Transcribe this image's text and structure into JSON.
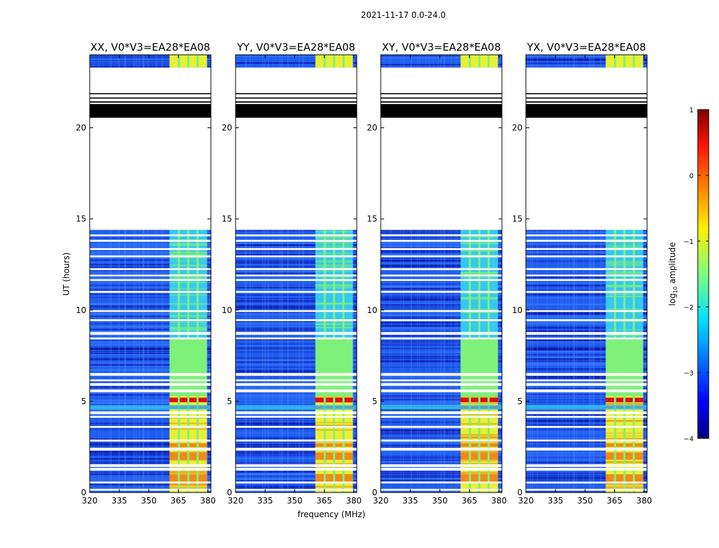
{
  "figure_title": "2021-11-17 0.0-24.0",
  "colors": {
    "noise_deep": "#0a12a8",
    "noise_mid": "#1f5cf0",
    "band_cyan": "#35c8f0",
    "band_green": "#7ff07a",
    "band_yellow": "#e8f034",
    "band_orange": "#f08a18",
    "band_red": "#d81010",
    "gap_white": "#ffffff",
    "flag_black": "#000000"
  },
  "chart_data": [
    {
      "type": "heatmap",
      "title": "XX, V0*V3=EA28*EA08",
      "xlabel": "",
      "ylabel": "UT (hours)",
      "xlim": [
        320,
        381.5
      ],
      "ylim": [
        0,
        24
      ],
      "xticks": [
        "320",
        "335",
        "350",
        "365",
        "380"
      ],
      "yticks": [
        "0",
        "5",
        "10",
        "15",
        "20"
      ]
    },
    {
      "type": "heatmap",
      "title": "YY, V0*V3=EA28*EA08",
      "xlabel": "frequency (MHz)",
      "ylabel": "",
      "xlim": [
        320,
        381.5
      ],
      "ylim": [
        0,
        24
      ],
      "xticks": [
        "320",
        "335",
        "350",
        "365",
        "380"
      ],
      "yticks": [
        "0",
        "5",
        "10",
        "15",
        "20"
      ]
    },
    {
      "type": "heatmap",
      "title": "XY, V0*V3=EA28*EA08",
      "xlabel": "",
      "ylabel": "",
      "xlim": [
        320,
        381.5
      ],
      "ylim": [
        0,
        24
      ],
      "xticks": [
        "320",
        "335",
        "350",
        "365",
        "380"
      ],
      "yticks": [
        "0",
        "5",
        "10",
        "15",
        "20"
      ]
    },
    {
      "type": "heatmap",
      "title": "YX, V0*V3=EA28*EA08",
      "xlabel": "",
      "ylabel": "",
      "xlim": [
        320,
        381.5
      ],
      "ylim": [
        0,
        24
      ],
      "xticks": [
        "320",
        "335",
        "350",
        "365",
        "380"
      ],
      "yticks": [
        "0",
        "5",
        "10",
        "15",
        "20"
      ]
    }
  ],
  "colorbar": {
    "label_prefix": "log",
    "label_sub": "10",
    "label_suffix": " amplitude",
    "range": [
      -4,
      1
    ],
    "ticks": [
      {
        "value": 1,
        "label": "1"
      },
      {
        "value": 0,
        "label": "0"
      },
      {
        "value": -1,
        "label": "−1"
      },
      {
        "value": -2,
        "label": "−2"
      },
      {
        "value": -3,
        "label": "−3"
      },
      {
        "value": -4,
        "label": "−4"
      }
    ]
  },
  "band": {
    "start_mhz": 360.5,
    "end_mhz": 379.5,
    "rfi_freq_mhz": 361.5
  },
  "gaps_hours": [
    [
      0.1,
      0.2
    ],
    [
      0.5,
      0.6
    ],
    [
      1.2,
      1.35
    ],
    [
      1.4,
      1.55
    ],
    [
      2.3,
      2.45
    ],
    [
      2.8,
      2.9
    ],
    [
      3.55,
      3.65
    ],
    [
      4.1,
      4.2
    ],
    [
      4.3,
      4.45
    ],
    [
      5.5,
      5.65
    ],
    [
      5.85,
      6.0
    ],
    [
      6.1,
      6.2
    ],
    [
      6.4,
      6.55
    ],
    [
      8.4,
      8.5
    ],
    [
      8.65,
      8.8
    ],
    [
      9.4,
      9.5
    ],
    [
      9.9,
      10.0
    ],
    [
      10.95,
      11.05
    ],
    [
      11.6,
      11.7
    ],
    [
      11.85,
      11.95
    ],
    [
      12.2,
      12.3
    ],
    [
      12.9,
      13.0
    ],
    [
      13.3,
      13.4
    ],
    [
      13.75,
      13.85
    ],
    [
      14.05,
      14.15
    ],
    [
      14.4,
      23.3
    ]
  ],
  "flag_bands_hours": [
    [
      20.55,
      21.3
    ],
    [
      21.38,
      21.45
    ],
    [
      21.6,
      21.66
    ],
    [
      21.84,
      21.9
    ]
  ]
}
